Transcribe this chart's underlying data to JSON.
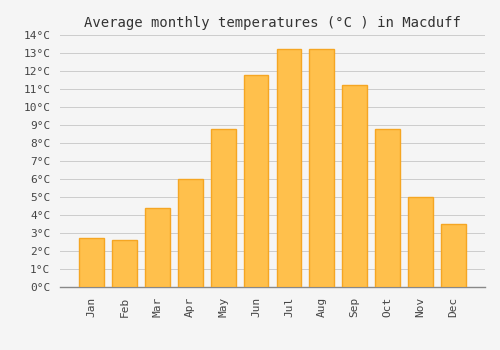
{
  "title": "Average monthly temperatures (°C ) in Macduff",
  "months": [
    "Jan",
    "Feb",
    "Mar",
    "Apr",
    "May",
    "Jun",
    "Jul",
    "Aug",
    "Sep",
    "Oct",
    "Nov",
    "Dec"
  ],
  "temperatures": [
    2.7,
    2.6,
    4.4,
    6.0,
    8.8,
    11.8,
    13.2,
    13.2,
    11.2,
    8.8,
    5.0,
    3.5
  ],
  "bar_color_inner": "#FFC04C",
  "bar_color_edge": "#F5A623",
  "ylim": [
    0,
    14
  ],
  "background_color": "#f5f5f5",
  "grid_color": "#cccccc",
  "title_fontsize": 10,
  "tick_fontsize": 8,
  "bar_width": 0.75
}
